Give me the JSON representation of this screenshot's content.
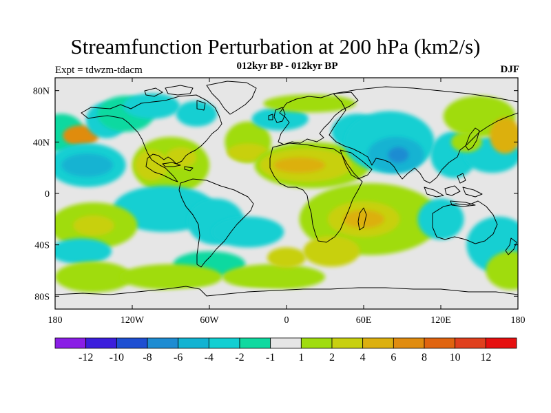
{
  "title": "Streamfunction Perturbation at 200 hPa (km2/s)",
  "subtitle": "012kyr BP - 012kyr BP",
  "left_label": "Expt = tdwzm-tdacm",
  "right_label": "DJF",
  "chart_data": {
    "type": "heatmap",
    "projection": "cylindrical-equidistant",
    "x_range": [
      -180,
      180
    ],
    "y_range": [
      -90,
      90
    ],
    "x_ticks": [
      {
        "v": -180,
        "label": "180"
      },
      {
        "v": -120,
        "label": "120W"
      },
      {
        "v": -60,
        "label": "60W"
      },
      {
        "v": 0,
        "label": "0"
      },
      {
        "v": 60,
        "label": "60E"
      },
      {
        "v": 120,
        "label": "120E"
      },
      {
        "v": 180,
        "label": "180"
      }
    ],
    "y_ticks": [
      {
        "v": 80,
        "label": "80N"
      },
      {
        "v": 40,
        "label": "40N"
      },
      {
        "v": 0,
        "label": "0"
      },
      {
        "v": -40,
        "label": "40S"
      },
      {
        "v": -80,
        "label": "80S"
      }
    ],
    "colorbar": {
      "labels": [
        "-12",
        "-10",
        "-8",
        "-6",
        "-4",
        "-2",
        "-1",
        "1",
        "2",
        "4",
        "6",
        "8",
        "10",
        "12"
      ],
      "colors": [
        "#8a1ee6",
        "#3c1edc",
        "#1e4fd2",
        "#1e8cd2",
        "#12b3d2",
        "#12cfd2",
        "#10d9a0",
        "#e6e6e6",
        "#a0dc10",
        "#c8d010",
        "#dcb010",
        "#e08c10",
        "#e06410",
        "#e0401e",
        "#e61010"
      ]
    },
    "background_color": "#e6e6e6",
    "features": [
      {
        "lon": -175,
        "lat": 47,
        "rlon": 18,
        "rlat": 15,
        "level": 6
      },
      {
        "lon": -160,
        "lat": 45,
        "rlon": 14,
        "rlat": 8,
        "level": 11
      },
      {
        "lon": -140,
        "lat": 57,
        "rlon": 16,
        "rlat": 14,
        "level": 5
      },
      {
        "lon": -125,
        "lat": 62,
        "rlon": 22,
        "rlat": 14,
        "level": 6
      },
      {
        "lon": -105,
        "lat": 68,
        "rlon": 22,
        "rlat": 10,
        "level": 5
      },
      {
        "lon": -70,
        "lat": 62,
        "rlon": 16,
        "rlat": 10,
        "level": 5
      },
      {
        "lon": -90,
        "lat": 22,
        "rlon": 30,
        "rlat": 22,
        "level": 8
      },
      {
        "lon": -105,
        "lat": 22,
        "rlon": 13,
        "rlat": 12,
        "level": 9
      },
      {
        "lon": -82,
        "lat": 28,
        "rlon": 12,
        "rlat": 8,
        "level": 9
      },
      {
        "lon": -155,
        "lat": 22,
        "rlon": 30,
        "rlat": 17,
        "level": 5
      },
      {
        "lon": -155,
        "lat": 22,
        "rlon": 20,
        "rlat": 9,
        "level": 4
      },
      {
        "lon": -30,
        "lat": 40,
        "rlon": 18,
        "rlat": 16,
        "level": 8
      },
      {
        "lon": -30,
        "lat": 32,
        "rlon": 16,
        "rlat": 7,
        "level": 9
      },
      {
        "lon": -5,
        "lat": 58,
        "rlon": 22,
        "rlat": 9,
        "level": 5
      },
      {
        "lon": 18,
        "lat": 70,
        "rlon": 36,
        "rlat": 7,
        "level": 8
      },
      {
        "lon": 20,
        "lat": 22,
        "rlon": 45,
        "rlat": 18,
        "level": 8
      },
      {
        "lon": 15,
        "lat": 22,
        "rlon": 36,
        "rlat": 13,
        "level": 9
      },
      {
        "lon": 10,
        "lat": 22,
        "rlon": 20,
        "rlat": 6,
        "level": 10
      },
      {
        "lon": 55,
        "lat": 48,
        "rlon": 20,
        "rlat": 14,
        "level": 5
      },
      {
        "lon": 80,
        "lat": 40,
        "rlon": 35,
        "rlat": 24,
        "level": 5
      },
      {
        "lon": 85,
        "lat": 30,
        "rlon": 22,
        "rlat": 14,
        "level": 4
      },
      {
        "lon": 87,
        "lat": 30,
        "rlon": 8,
        "rlat": 6,
        "level": 3
      },
      {
        "lon": 130,
        "lat": 30,
        "rlon": 18,
        "rlat": 18,
        "level": 5
      },
      {
        "lon": 160,
        "lat": 30,
        "rlon": 22,
        "rlat": 14,
        "level": 5
      },
      {
        "lon": 150,
        "lat": 60,
        "rlon": 28,
        "rlat": 16,
        "level": 8
      },
      {
        "lon": 170,
        "lat": 45,
        "rlon": 12,
        "rlat": 14,
        "level": 10
      },
      {
        "lon": 140,
        "lat": 40,
        "rlon": 12,
        "rlat": 8,
        "level": 8
      },
      {
        "lon": -95,
        "lat": -12,
        "rlon": 40,
        "rlat": 18,
        "level": 5
      },
      {
        "lon": -55,
        "lat": -22,
        "rlon": 22,
        "rlat": 18,
        "level": 5
      },
      {
        "lon": -30,
        "lat": -30,
        "rlon": 28,
        "rlat": 12,
        "level": 5
      },
      {
        "lon": -150,
        "lat": -25,
        "rlon": 34,
        "rlat": 18,
        "level": 8
      },
      {
        "lon": -150,
        "lat": -25,
        "rlon": 16,
        "rlat": 8,
        "level": 9
      },
      {
        "lon": -160,
        "lat": -45,
        "rlon": 24,
        "rlat": 10,
        "level": 5
      },
      {
        "lon": -150,
        "lat": -65,
        "rlon": 30,
        "rlat": 12,
        "level": 8
      },
      {
        "lon": -60,
        "lat": -55,
        "rlon": 28,
        "rlat": 10,
        "level": 6
      },
      {
        "lon": -90,
        "lat": -65,
        "rlon": 40,
        "rlat": 10,
        "level": 8
      },
      {
        "lon": 65,
        "lat": -20,
        "rlon": 55,
        "rlat": 28,
        "level": 8
      },
      {
        "lon": 60,
        "lat": -20,
        "rlon": 28,
        "rlat": 14,
        "level": 9
      },
      {
        "lon": 60,
        "lat": -20,
        "rlon": 16,
        "rlat": 7,
        "level": 10
      },
      {
        "lon": 35,
        "lat": -45,
        "rlon": 22,
        "rlat": 12,
        "level": 9
      },
      {
        "lon": 120,
        "lat": -20,
        "rlon": 18,
        "rlat": 16,
        "level": 5
      },
      {
        "lon": 165,
        "lat": -40,
        "rlon": 25,
        "rlat": 22,
        "level": 5
      },
      {
        "lon": 175,
        "lat": -60,
        "rlon": 20,
        "rlat": 15,
        "level": 8
      },
      {
        "lon": -10,
        "lat": -65,
        "rlon": 40,
        "rlat": 10,
        "level": 8
      },
      {
        "lon": 0,
        "lat": -50,
        "rlon": 15,
        "rlat": 8,
        "level": 9
      },
      {
        "lon": -40,
        "lat": -80,
        "rlon": 60,
        "rlat": 6,
        "level": 7
      }
    ]
  }
}
